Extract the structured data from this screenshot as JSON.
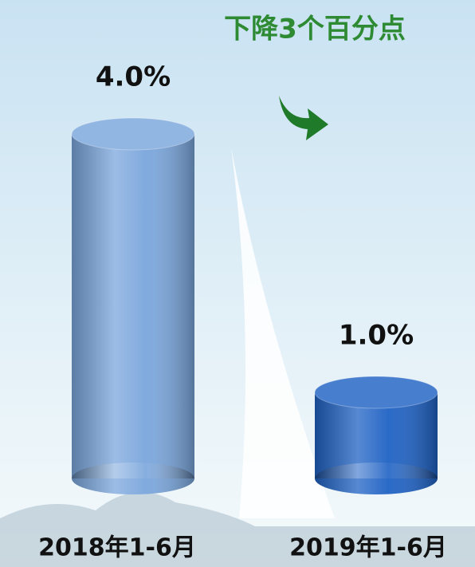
{
  "chart_data": {
    "type": "bar",
    "title": "下降3个百分点",
    "categories": [
      "2018年1-6月",
      "2019年1-6月"
    ],
    "values": [
      4.0,
      1.0
    ],
    "value_labels": [
      "4.0%",
      "1.0%"
    ],
    "colors": [
      "#7aa6dc",
      "#1f62c4"
    ]
  }
}
